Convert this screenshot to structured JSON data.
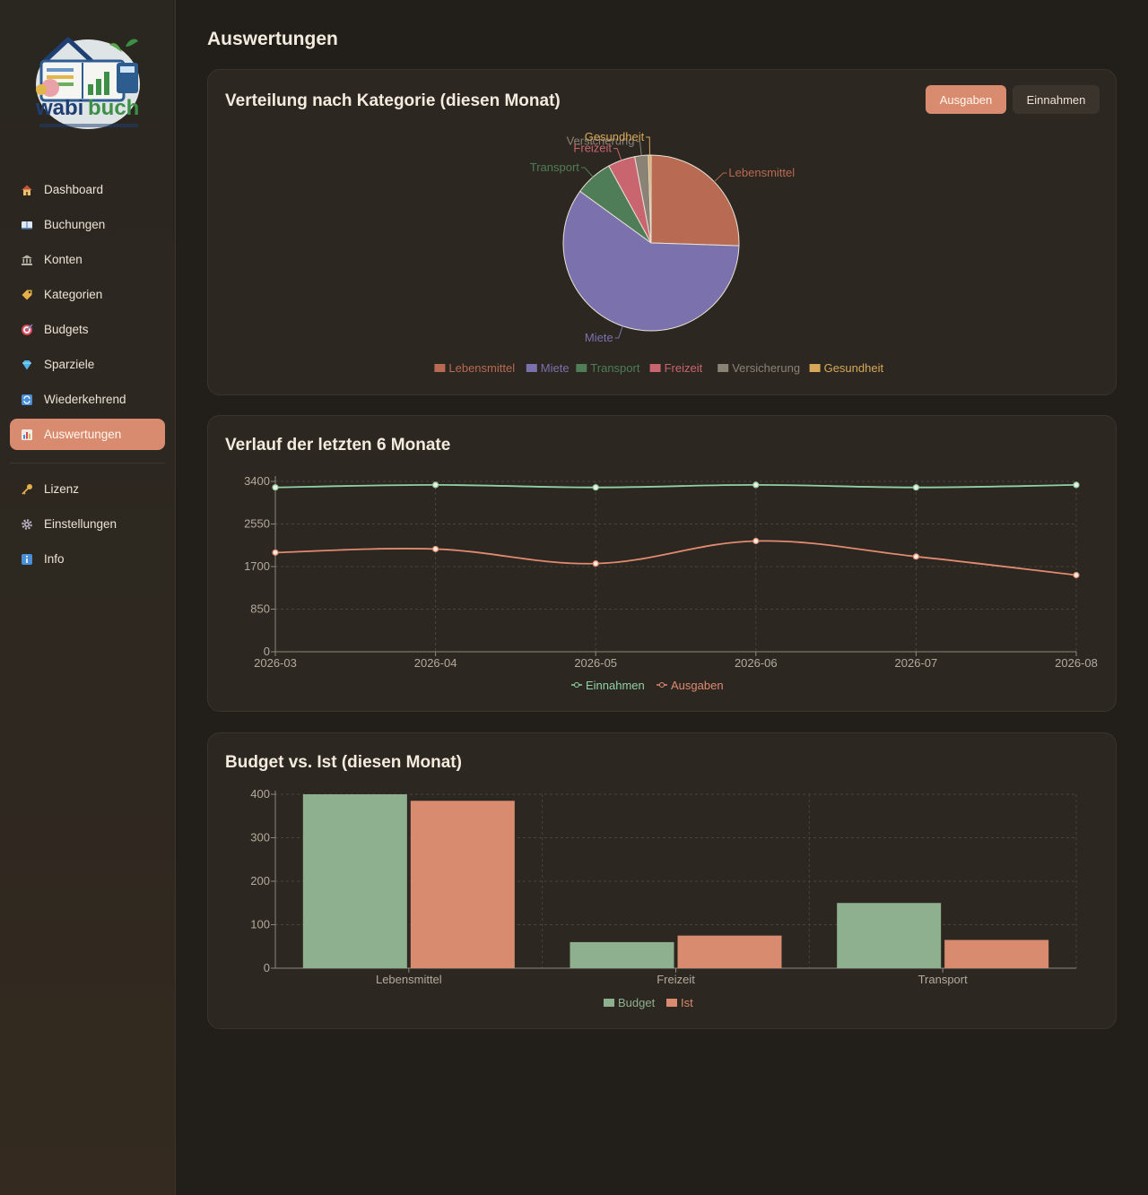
{
  "nav": {
    "items": [
      {
        "label": "Dashboard",
        "icon": "house-icon"
      },
      {
        "label": "Buchungen",
        "icon": "book-icon"
      },
      {
        "label": "Konten",
        "icon": "bank-icon"
      },
      {
        "label": "Kategorien",
        "icon": "tag-icon"
      },
      {
        "label": "Budgets",
        "icon": "target-icon"
      },
      {
        "label": "Sparziele",
        "icon": "gem-icon"
      },
      {
        "label": "Wiederkehrend",
        "icon": "repeat-icon"
      },
      {
        "label": "Auswertungen",
        "icon": "chart-icon",
        "active": true
      }
    ],
    "footer_items": [
      {
        "label": "Lizenz",
        "icon": "key-icon"
      },
      {
        "label": "Einstellungen",
        "icon": "gear-icon"
      },
      {
        "label": "Info",
        "icon": "info-icon"
      }
    ]
  },
  "logo": {
    "text_main": "wabi",
    "text_accent": "buch"
  },
  "page": {
    "title": "Auswertungen"
  },
  "category_card": {
    "title": "Verteilung nach Kategorie (diesen Monat)",
    "toggle": {
      "expenses_label": "Ausgaben",
      "income_label": "Einnahmen",
      "selected": "Ausgaben"
    }
  },
  "trend_card": {
    "title": "Verlauf der letzten 6 Monate"
  },
  "budget_card": {
    "title": "Budget vs. Ist (diesen Monat)"
  },
  "colors": {
    "accent": "#d98b70",
    "income": "#8fd1a4",
    "expenses": "#e08a70",
    "budget": "#8fb08f"
  },
  "chart_data": [
    {
      "type": "pie",
      "categories": [
        "Lebensmittel",
        "Miete",
        "Transport",
        "Freizeit",
        "Versicherung",
        "Gesundheit"
      ],
      "values": [
        25.5,
        59.5,
        7,
        5,
        2.5,
        0.5
      ],
      "colors": [
        "#b86a52",
        "#7b72ad",
        "#4f7d58",
        "#c9656e",
        "#8a8275",
        "#d7a85a"
      ],
      "legend": "bottom"
    },
    {
      "type": "line",
      "x": [
        "2026-03",
        "2026-04",
        "2026-05",
        "2026-06",
        "2026-07",
        "2026-08"
      ],
      "series": [
        {
          "name": "Einnahmen",
          "values": [
            3280,
            3330,
            3280,
            3330,
            3280,
            3330
          ],
          "color": "#8fd1a4"
        },
        {
          "name": "Ausgaben",
          "values": [
            1980,
            2050,
            1760,
            2210,
            1900,
            1530
          ],
          "color": "#e08a70"
        }
      ],
      "yticks": [
        0,
        850,
        1700,
        2550,
        3400
      ],
      "ylim": [
        0,
        3400
      ],
      "grid": true,
      "legend": "bottom"
    },
    {
      "type": "bar",
      "categories": [
        "Lebensmittel",
        "Freizeit",
        "Transport"
      ],
      "series": [
        {
          "name": "Budget",
          "values": [
            400,
            60,
            150
          ],
          "color": "#8fb08f"
        },
        {
          "name": "Ist",
          "values": [
            385,
            75,
            65
          ],
          "color": "#d98b70"
        }
      ],
      "yticks": [
        0,
        100,
        200,
        300,
        400
      ],
      "ylim": [
        0,
        400
      ],
      "grid": true,
      "legend": "bottom"
    }
  ]
}
